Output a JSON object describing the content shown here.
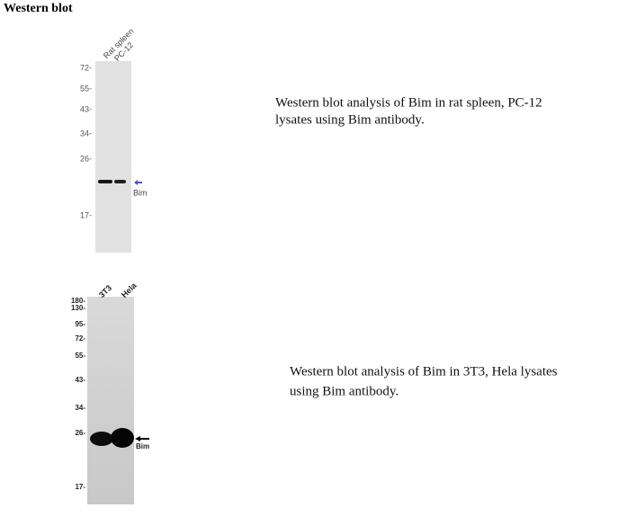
{
  "title": "Western blot",
  "blots": [
    {
      "lanes": [
        "Rat spleen",
        "PC-12"
      ],
      "markers": [
        "72-",
        "55-",
        "43-",
        "34-",
        "26-",
        "17-"
      ],
      "band_label": "Bim",
      "caption": [
        "Western blot analysis  of Bim  in rat spleen, PC-12",
        "lysates using Bim antibody."
      ]
    },
    {
      "lanes": [
        "3T3",
        "Hela"
      ],
      "markers": [
        "180-",
        "130-",
        "95-",
        "72-",
        "55-",
        "43-",
        "34-",
        "26-",
        "17-"
      ],
      "band_label": "Bim",
      "caption": [
        "Western blot analysis  of Bim  in 3T3,  Hela lysates",
        "using Bim antibody."
      ]
    }
  ]
}
